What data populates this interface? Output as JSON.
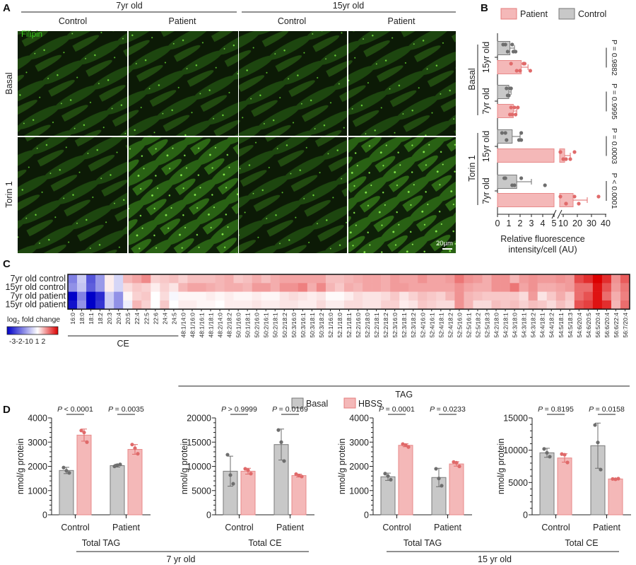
{
  "panel_labels": {
    "a": "A",
    "b": "B",
    "c": "C",
    "d": "D"
  },
  "panel_a": {
    "age_headers": [
      "7yr old",
      "15yr old"
    ],
    "column_headers": [
      "Control",
      "Patient",
      "Control",
      "Patient"
    ],
    "row_headers": [
      "Basal",
      "Torin 1"
    ],
    "stain_label": "Filipin",
    "stain_color": "#3ccf1e",
    "scale_bar": "20µm"
  },
  "chart_data": [
    {
      "id": "B",
      "type": "bar",
      "orientation": "horizontal",
      "legend": [
        {
          "name": "Patient",
          "color": "#f4b8b8"
        },
        {
          "name": "Control",
          "color": "#c8c8c8"
        }
      ],
      "legend_placement": "top",
      "xlabel_line1": "Relative fluorescence",
      "xlabel_line2": "intensity/cell (AU)",
      "x_axis": "broken",
      "xticks": [
        "0",
        "1",
        "2",
        "3",
        "4",
        "5",
        "10",
        "20",
        "30",
        "40"
      ],
      "treatment_labels": [
        "Basal",
        "Torin 1"
      ],
      "groups": [
        {
          "treatment": "Basal",
          "age": "15yr old",
          "control": {
            "mean": 1.1,
            "sd": 0.4,
            "points": [
              0.5,
              0.9,
              1.3,
              1.6,
              0.7,
              1.4
            ]
          },
          "patient": {
            "mean": 2.1,
            "sd": 0.6,
            "points": [
              1.2,
              1.7,
              2.3,
              2.9,
              2.4,
              2.0
            ]
          },
          "p": "P = 0.9882"
        },
        {
          "treatment": "Basal",
          "age": "7yr old",
          "control": {
            "mean": 1.0,
            "sd": 0.2,
            "points": [
              0.8,
              1.0,
              1.2,
              0.9,
              1.1,
              1.0
            ]
          },
          "patient": {
            "mean": 1.4,
            "sd": 0.3,
            "points": [
              1.2,
              1.6,
              1.8,
              1.3,
              1.5,
              1.1
            ]
          },
          "p": "P = 0.9995"
        },
        {
          "treatment": "Torin 1",
          "age": "15yr old",
          "control": {
            "mean": 1.3,
            "sd": 0.7,
            "points": [
              0.7,
              2.1,
              0.4,
              1.9,
              2.1,
              0.8
            ]
          },
          "patient": {
            "mean": 11,
            "sd": 4,
            "points": [
              8,
              12,
              18,
              15,
              8,
              10
            ]
          },
          "p": "P = 0.0003"
        },
        {
          "treatment": "Torin 1",
          "age": "7yr old",
          "control": {
            "mean": 1.7,
            "sd": 1.3,
            "points": [
              0.7,
              1.5,
              2.1,
              4.2,
              0.6,
              1.3
            ]
          },
          "patient": {
            "mean": 17,
            "sd": 10,
            "points": [
              8,
              12,
              18,
              21,
              35,
              12
            ]
          },
          "p": "P < 0.0001"
        }
      ]
    },
    {
      "id": "C",
      "type": "heatmap",
      "rows": [
        "7yr old control",
        "15yr old control",
        "7yr old patient",
        "15yr old patient"
      ],
      "columns": [
        "16:0",
        "18:0",
        "18:1",
        "18:2",
        "20:3",
        "20:4",
        "20:5",
        "22:4",
        "22:5",
        "22:6",
        "24:4",
        "24:5",
        "48:1/14:0",
        "48:1/16:0",
        "48:1/16:1",
        "48:1/18:1",
        "48:2/14:0",
        "48:2/18:2",
        "50:1/16:0",
        "50:1/18:1",
        "50:2/16:0",
        "50:2/16:1",
        "50:2/18:1",
        "50:2/18:2",
        "50:3/16:0",
        "50:3/16:1",
        "50:3/18:1",
        "50:3/18:2",
        "52:1/16:0",
        "52:1/18:0",
        "52:1/18:1",
        "52:2/16:0",
        "52:2/18:0",
        "52:2/18:1",
        "52:2/18:2",
        "52:3/16:0",
        "52:3/18:1",
        "52:3/18:2",
        "52:4/16:0",
        "52:4/16:1",
        "52:4/18:1",
        "52:4/18:2",
        "52:5/16:0",
        "52:5/16:1",
        "52:5/18:2",
        "52:5/18:3",
        "54:2/18:0",
        "54:2/18:1",
        "54:3/18:0",
        "54:3/18:1",
        "54:3/18:2",
        "54:4/18:1",
        "54:4/18:2",
        "54:5/18:1",
        "54:5/18:3",
        "54:6/20:4",
        "54:6/20:5",
        "56:5/20:4",
        "56:6/20:4",
        "56:6/22:4",
        "56:7/20:4"
      ],
      "column_groups": [
        {
          "label": "CE",
          "count": 12
        },
        {
          "label": "TAG",
          "count": 49
        }
      ],
      "values": [
        [
          -1.5,
          -0.6,
          -2,
          -1.2,
          0.2,
          -0.5,
          0.8,
          1,
          1.3,
          0.5,
          0.6,
          0.7,
          0.5,
          0.7,
          0.7,
          0.7,
          0.8,
          0.9,
          0.6,
          0.7,
          0.9,
          0.7,
          0.9,
          1.0,
          1.0,
          1.0,
          1.0,
          1.0,
          0.7,
          0.7,
          0.8,
          0.9,
          1.0,
          1.0,
          0.9,
          1.1,
          1.0,
          1.0,
          1.2,
          1.0,
          1.0,
          1.1,
          1.5,
          1.2,
          1.1,
          0.9,
          1.2,
          1.2,
          0.8,
          1.1,
          1.2,
          1.1,
          1.1,
          1.2,
          1.1,
          2.0,
          2.3,
          2.8,
          2.3,
          1.2,
          1.8
        ],
        [
          -1.3,
          -0.7,
          -1.9,
          -1.2,
          0.2,
          -0.5,
          0.4,
          0.6,
          0.5,
          0.2,
          0.5,
          0.3,
          0.8,
          1.0,
          1.0,
          0.9,
          0.8,
          0.9,
          0.9,
          0.8,
          1.1,
          1.1,
          0.9,
          1.2,
          1.2,
          1.4,
          0.9,
          1.3,
          0.8,
          0.6,
          0.9,
          0.8,
          1.0,
          1.0,
          0.9,
          1.1,
          1.1,
          1.0,
          1.0,
          1.0,
          1.0,
          1.0,
          1.2,
          1.0,
          0.9,
          0.9,
          1.2,
          1.2,
          1.5,
          1.0,
          1.2,
          0.9,
          0.9,
          1.0,
          1.1,
          1.6,
          1.6,
          2.6,
          1.9,
          1.1,
          1.5
        ],
        [
          -3,
          -1.5,
          -3.2,
          -2.5,
          -0.6,
          -1.3,
          0.1,
          0.5,
          0.6,
          0,
          0.4,
          -0.1,
          0.1,
          0.1,
          0.1,
          0.2,
          0.1,
          0.2,
          0.1,
          0.1,
          0.2,
          0.1,
          0.1,
          0.3,
          0.4,
          0.3,
          0.2,
          0.3,
          0.05,
          0.05,
          0.2,
          0.4,
          0.3,
          0.3,
          0.4,
          0.6,
          0.3,
          0.5,
          0.7,
          0.6,
          0.5,
          0.8,
          1.2,
          0.8,
          0.7,
          0.6,
          0.6,
          0.6,
          0.6,
          0.4,
          1.1,
          0.3,
          0.6,
          0.9,
          0.6,
          1.6,
          1.9,
          2.6,
          1.6,
          0.9,
          1.4
        ],
        [
          -2.8,
          -1.3,
          -3.2,
          -2.4,
          -0.6,
          -1.3,
          -0.2,
          0.8,
          0.5,
          0,
          0.6,
          0,
          0.2,
          0.2,
          0.1,
          0.1,
          0.0,
          0.2,
          0.2,
          0.2,
          0.3,
          0.2,
          0.2,
          0.3,
          0.3,
          0.2,
          0.2,
          0.4,
          0.2,
          0.2,
          0.4,
          0.4,
          0.3,
          0.3,
          0.5,
          0.5,
          0.2,
          0.3,
          0.6,
          0.5,
          0.4,
          0.4,
          1.2,
          0.8,
          0.4,
          0.4,
          0.7,
          0.6,
          0.7,
          0.5,
          0.7,
          0.6,
          0.4,
          0.7,
          0.5,
          1.9,
          2.1,
          2.6,
          2.3,
          0.8,
          1.6
        ]
      ],
      "colorbar": {
        "title": "log",
        "subscript": "2",
        "title_rest": " fold change",
        "ticks": "-3-2-10 1 2",
        "min": -3,
        "max": 2,
        "low_color": "#0000c8",
        "mid_color": "#ffffff",
        "high_color": "#dc0000"
      }
    },
    {
      "id": "D",
      "type": "bar",
      "legend": [
        {
          "name": "Basal",
          "color": "#c8c8c8"
        },
        {
          "name": "HBSS",
          "color": "#f4b8b8"
        }
      ],
      "legend_placement": "top",
      "ylabel": "nmol/g  protein",
      "age_labels": [
        "7 yr old",
        "15 yr old"
      ],
      "panels": [
        {
          "title": "Total TAG",
          "ylim": [
            0,
            4000
          ],
          "yticks": [
            "0",
            "1000",
            "2000",
            "3000",
            "4000"
          ],
          "categories": [
            "Control",
            "Patient"
          ],
          "p_values": [
            "< 0.0001",
            "= 0.0035"
          ],
          "series": [
            {
              "name": "Basal",
              "means": [
                1830,
                2030
              ],
              "sd": [
                130,
                60
              ],
              "points": [
                [
                  1950,
                  1820,
                  1730
                ],
                [
                  2000,
                  2050,
                  2080
                ]
              ]
            },
            {
              "name": "HBSS",
              "means": [
                3290,
                2700
              ],
              "sd": [
                250,
                200
              ],
              "points": [
                [
                  3480,
                  3400,
                  3000
                ],
                [
                  2900,
                  2750,
                  2520
                ]
              ]
            }
          ]
        },
        {
          "title": "Total CE",
          "ylim": [
            0,
            20000
          ],
          "yticks": [
            "0",
            "5000",
            "10000",
            "15000",
            "20000"
          ],
          "categories": [
            "Control",
            "Patient"
          ],
          "p_values": [
            "> 0.9999",
            "= 0.0169"
          ],
          "series": [
            {
              "name": "Basal",
              "means": [
                9000,
                14500
              ],
              "sd": [
                3100,
                3200
              ],
              "points": [
                [
                  12400,
                  8200,
                  6400
                ],
                [
                  17500,
                  15000,
                  11100
                ]
              ]
            },
            {
              "name": "HBSS",
              "means": [
                9000,
                8100
              ],
              "sd": [
                600,
                300
              ],
              "points": [
                [
                  9500,
                  9200,
                  8500
                ],
                [
                  8400,
                  8100,
                  7900
                ]
              ]
            }
          ]
        },
        {
          "title": "Total TAG",
          "ylim": [
            0,
            4000
          ],
          "yticks": [
            "0",
            "1000",
            "2000",
            "3000",
            "4000"
          ],
          "categories": [
            "Control",
            "Patient"
          ],
          "p_values": [
            "= 0.0001",
            "= 0.0233"
          ],
          "series": [
            {
              "name": "Basal",
              "means": [
                1570,
                1540
              ],
              "sd": [
                150,
                380
              ],
              "points": [
                [
                  1700,
                  1600,
                  1450
                ],
                [
                  1900,
                  1500,
                  1200
                ]
              ]
            },
            {
              "name": "HBSS",
              "means": [
                2870,
                2100
              ],
              "sd": [
                60,
                90
              ],
              "points": [
                [
                  2920,
                  2880,
                  2800
                ],
                [
                  2180,
                  2150,
                  2000
                ]
              ]
            }
          ]
        },
        {
          "title": "Total CE",
          "ylim": [
            0,
            15000
          ],
          "yticks": [
            "0",
            "5000",
            "10000",
            "15000"
          ],
          "categories": [
            "Control",
            "Patient"
          ],
          "p_values": [
            "= 0.8195",
            "= 0.0158"
          ],
          "series": [
            {
              "name": "Basal",
              "means": [
                9600,
                10700
              ],
              "sd": [
                700,
                3500
              ],
              "points": [
                [
                  10200,
                  9600,
                  9000
                ],
                [
                  13900,
                  11200,
                  7000
                ]
              ]
            },
            {
              "name": "HBSS",
              "means": [
                8800,
                5550
              ],
              "sd": [
                650,
                60
              ],
              "points": [
                [
                  9400,
                  9300,
                  8100
                ],
                [
                  5550,
                  5500,
                  5600
                ]
              ]
            }
          ]
        }
      ]
    }
  ]
}
